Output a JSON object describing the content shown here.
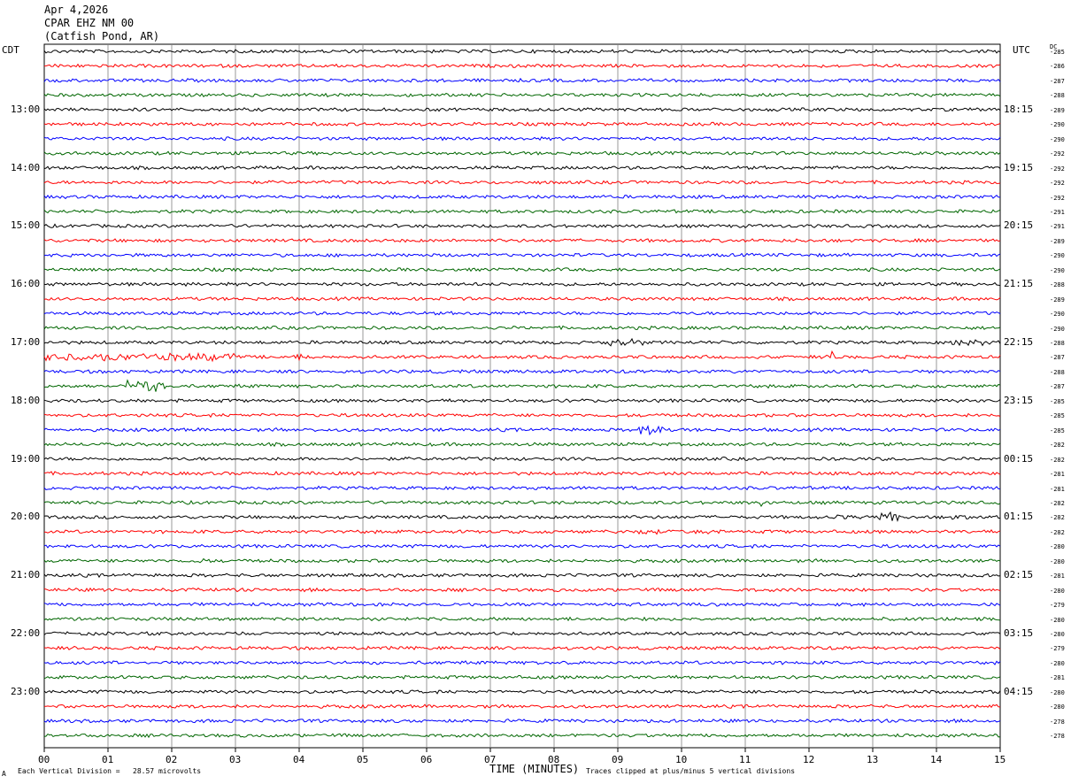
{
  "header": {
    "date": "Apr 4,2026",
    "station": "CPAR EHZ NM 00",
    "location": "(Catfish Pond, AR)"
  },
  "left_axis_label": "CDT",
  "right_axis_label": "UTC",
  "dc_label": "DC",
  "x_axis_label": "TIME (MINUTES)",
  "footer": {
    "left_mark": "A",
    "scale": "Each Vertical Division =   28.57 microvolts",
    "clip": "Traces clipped at plus/minus 5 vertical divisions"
  },
  "colors": {
    "line1": "#000000",
    "line2": "#ff0000",
    "line3": "#0000ff",
    "line4": "#006600",
    "grid": "#808080"
  },
  "chart_data": {
    "type": "line",
    "title": "",
    "x_range": [
      0,
      15
    ],
    "x_ticks": [
      "00",
      "01",
      "02",
      "03",
      "04",
      "05",
      "06",
      "07",
      "08",
      "09",
      "10",
      "11",
      "12",
      "13",
      "14",
      "15"
    ],
    "rows_per_hour": 4,
    "trace_count": 48,
    "trace_color_cycle": [
      "black",
      "red",
      "blue",
      "green"
    ],
    "left_hour_labels": [
      "13:00",
      "14:00",
      "15:00",
      "16:00",
      "17:00",
      "18:00",
      "19:00",
      "20:00",
      "21:00",
      "22:00",
      "23:00"
    ],
    "right_hour_labels": [
      "18:15",
      "19:15",
      "20:15",
      "21:15",
      "22:15",
      "23:15",
      "00:15",
      "01:15",
      "02:15",
      "03:15",
      "04:15"
    ],
    "hour_label_trace_index": [
      4,
      8,
      12,
      16,
      20,
      24,
      28,
      32,
      36,
      40,
      44
    ],
    "dc_offsets": [
      "-285",
      "-286",
      "-287",
      "-288",
      "-289",
      "-290",
      "-290",
      "-292",
      "-292",
      "-292",
      "-292",
      "-291",
      "-291",
      "-289",
      "-290",
      "-290",
      "-288",
      "-289",
      "-290",
      "-290",
      "-288",
      "-287",
      "-288",
      "-287",
      "-285",
      "-285",
      "-285",
      "-282",
      "-282",
      "-281",
      "-281",
      "-282",
      "-282",
      "-282",
      "-280",
      "-280",
      "-281",
      "-280",
      "-279",
      "-280",
      "-280",
      "-279",
      "-280",
      "-281",
      "-280",
      "-280",
      "-278",
      "-278"
    ],
    "events": [
      {
        "trace": 20,
        "start_min": 8.85,
        "end_min": 9.4,
        "amp_div": 3
      },
      {
        "trace": 20,
        "start_min": 14.2,
        "end_min": 14.85,
        "amp_div": 2.5
      },
      {
        "trace": 21,
        "start_min": 0,
        "end_min": 3.0,
        "amp_div": 3
      },
      {
        "trace": 21,
        "start_min": 3.95,
        "end_min": 4.05,
        "amp_div": 5
      },
      {
        "trace": 21,
        "start_min": 12.35,
        "end_min": 12.4,
        "amp_div": 5
      },
      {
        "trace": 23,
        "start_min": 1.3,
        "end_min": 1.9,
        "amp_div": 4.5
      },
      {
        "trace": 26,
        "start_min": 9.3,
        "end_min": 9.7,
        "amp_div": 4.5
      },
      {
        "trace": 27,
        "start_min": 2.3,
        "end_min": 3.0,
        "amp_div": 1.5
      },
      {
        "trace": 31,
        "start_min": 11.25,
        "end_min": 11.3,
        "amp_div": 5
      },
      {
        "trace": 32,
        "start_min": 12.2,
        "end_min": 12.9,
        "amp_div": 1.5
      },
      {
        "trace": 32,
        "start_min": 13.1,
        "end_min": 13.4,
        "amp_div": 5
      },
      {
        "trace": 32,
        "start_min": 14.2,
        "end_min": 14.5,
        "amp_div": 2
      },
      {
        "trace": 33,
        "start_min": 9.3,
        "end_min": 9.7,
        "amp_div": 2
      },
      {
        "trace": 33,
        "start_min": 10.2,
        "end_min": 10.5,
        "amp_div": 2
      },
      {
        "trace": 35,
        "start_min": 2.5,
        "end_min": 2.55,
        "amp_div": 2.5
      }
    ]
  }
}
